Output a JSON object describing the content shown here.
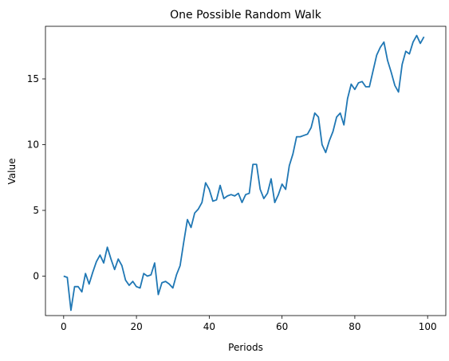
{
  "chart_data": {
    "type": "line",
    "title": "One Possible Random Walk",
    "xlabel": "Periods",
    "ylabel": "Value",
    "xlim": [
      -5,
      105
    ],
    "ylim": [
      -3.0,
      19.0
    ],
    "x_ticks": [
      0,
      20,
      40,
      60,
      80,
      100
    ],
    "y_ticks": [
      0,
      5,
      10,
      15
    ],
    "grid": false,
    "series": [
      {
        "color": "#1f77b4",
        "x": [
          0,
          1,
          2,
          3,
          4,
          5,
          6,
          7,
          8,
          9,
          10,
          11,
          12,
          13,
          14,
          15,
          16,
          17,
          18,
          19,
          20,
          21,
          22,
          23,
          24,
          25,
          26,
          27,
          28,
          29,
          30,
          31,
          32,
          33,
          34,
          35,
          36,
          37,
          38,
          39,
          40,
          41,
          42,
          43,
          44,
          45,
          46,
          47,
          48,
          49,
          50,
          51,
          52,
          53,
          54,
          55,
          56,
          57,
          58,
          59,
          60,
          61,
          62,
          63,
          64,
          65,
          66,
          67,
          68,
          69,
          70,
          71,
          72,
          73,
          74,
          75,
          76,
          77,
          78,
          79,
          80,
          81,
          82,
          83,
          84,
          85,
          86,
          87,
          88,
          89,
          90,
          91,
          92,
          93,
          94,
          95,
          96,
          97,
          98,
          99
        ],
        "values": [
          0.0,
          -0.1,
          -2.6,
          -0.8,
          -0.8,
          -1.2,
          0.2,
          -0.6,
          0.3,
          1.1,
          1.6,
          1.0,
          2.2,
          1.3,
          0.5,
          1.3,
          0.8,
          -0.3,
          -0.7,
          -0.4,
          -0.8,
          -0.9,
          0.2,
          0.0,
          0.1,
          1.0,
          -1.4,
          -0.5,
          -0.4,
          -0.6,
          -0.9,
          0.1,
          0.8,
          2.6,
          4.3,
          3.7,
          4.8,
          5.1,
          5.6,
          7.1,
          6.6,
          5.7,
          5.8,
          6.9,
          5.9,
          6.1,
          6.2,
          6.1,
          6.3,
          5.6,
          6.2,
          6.3,
          8.5,
          8.5,
          6.6,
          5.9,
          6.3,
          7.4,
          5.6,
          6.2,
          7.0,
          6.6,
          8.4,
          9.3,
          10.6,
          10.6,
          10.7,
          10.8,
          11.3,
          12.4,
          12.1,
          10.0,
          9.4,
          10.3,
          11.0,
          12.1,
          12.4,
          11.5,
          13.5,
          14.6,
          14.2,
          14.7,
          14.8,
          14.4,
          14.4,
          15.6,
          16.8,
          17.4,
          17.8,
          16.4,
          15.5,
          14.5,
          14.0,
          16.1,
          17.1,
          16.9,
          17.8,
          18.3,
          17.7,
          18.2
        ]
      }
    ]
  }
}
